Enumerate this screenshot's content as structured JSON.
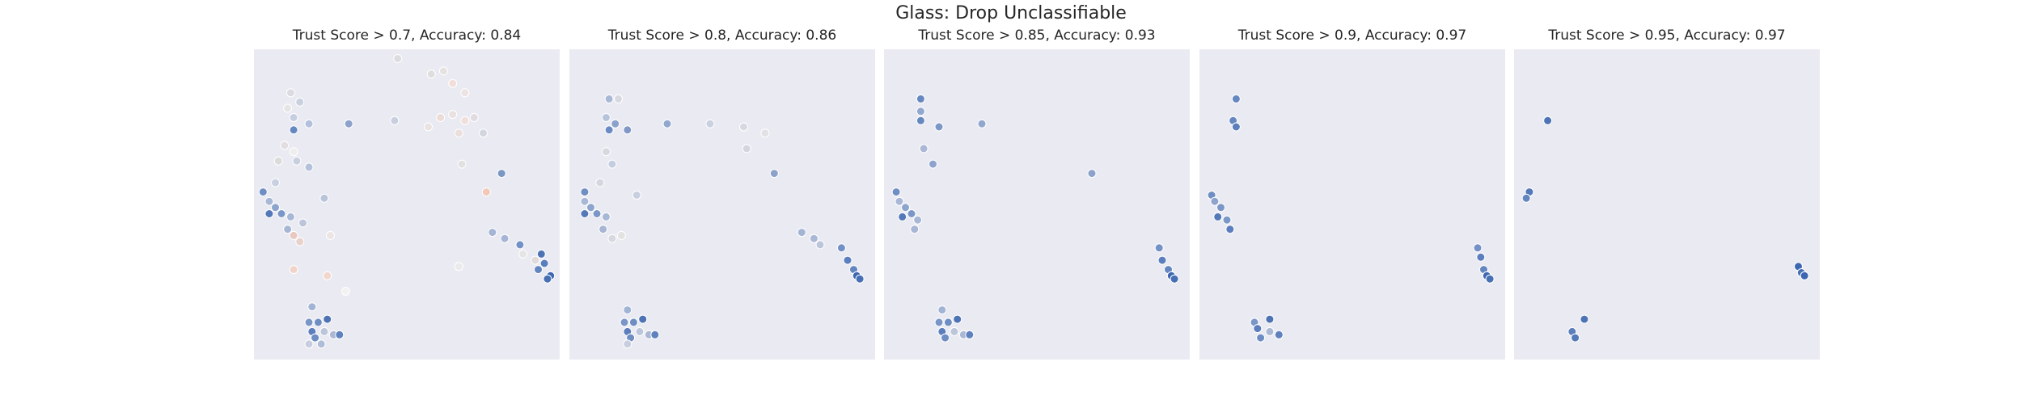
{
  "figure": {
    "title": "Glass: Drop Unclassifiable"
  },
  "chart_data": [
    {
      "type": "scatter",
      "title": "Trust Score > 0.7, Accuracy: 0.84",
      "points": [
        [
          0.47,
          0.03,
          "#dddcdf"
        ],
        [
          0.58,
          0.08,
          "#dedede"
        ],
        [
          0.62,
          0.07,
          "#e6e2e2"
        ],
        [
          0.65,
          0.11,
          "#f3dfda"
        ],
        [
          0.69,
          0.14,
          "#ede3e3"
        ],
        [
          0.12,
          0.14,
          "#dddbe1"
        ],
        [
          0.15,
          0.17,
          "#c9d0e0"
        ],
        [
          0.11,
          0.19,
          "#e5e5e5"
        ],
        [
          0.13,
          0.22,
          "#c5cde0"
        ],
        [
          0.18,
          0.24,
          "#b1c0dc"
        ],
        [
          0.13,
          0.26,
          "#6688c0"
        ],
        [
          0.31,
          0.24,
          "#8ca2cb"
        ],
        [
          0.46,
          0.23,
          "#c8cfdf"
        ],
        [
          0.61,
          0.22,
          "#ecdcd8"
        ],
        [
          0.65,
          0.21,
          "#e8e1e0"
        ],
        [
          0.69,
          0.23,
          "#f1dfd9"
        ],
        [
          0.72,
          0.22,
          "#e0dbe1"
        ],
        [
          0.75,
          0.27,
          "#d4d6df"
        ],
        [
          0.67,
          0.27,
          "#eadfdd"
        ],
        [
          0.57,
          0.25,
          "#eae3e2"
        ],
        [
          0.1,
          0.31,
          "#e1dde1"
        ],
        [
          0.13,
          0.33,
          "#eeeeee"
        ],
        [
          0.08,
          0.36,
          "#dbdbdb"
        ],
        [
          0.14,
          0.36,
          "#c8d0e0"
        ],
        [
          0.18,
          0.38,
          "#b4c1da"
        ],
        [
          0.68,
          0.37,
          "#e1e1e1"
        ],
        [
          0.81,
          0.4,
          "#7a97c4"
        ],
        [
          0.07,
          0.43,
          "#c9d0e0"
        ],
        [
          0.03,
          0.46,
          "#6f8fc4"
        ],
        [
          0.05,
          0.49,
          "#a9b8d6"
        ],
        [
          0.07,
          0.51,
          "#8da4cd"
        ],
        [
          0.09,
          0.53,
          "#7b97c7"
        ],
        [
          0.12,
          0.54,
          "#a7b8d6"
        ],
        [
          0.16,
          0.56,
          "#bcc5d9"
        ],
        [
          0.23,
          0.48,
          "#b9c4da"
        ],
        [
          0.05,
          0.53,
          "#5479b9"
        ],
        [
          0.11,
          0.58,
          "#a6b6d4"
        ],
        [
          0.13,
          0.6,
          "#e8c9c1"
        ],
        [
          0.15,
          0.62,
          "#ead2cc"
        ],
        [
          0.25,
          0.6,
          "#ebe5e5"
        ],
        [
          0.76,
          0.46,
          "#f3c8b8"
        ],
        [
          0.78,
          0.59,
          "#a3b4d4"
        ],
        [
          0.82,
          0.61,
          "#a6b5d5"
        ],
        [
          0.87,
          0.63,
          "#7391c6"
        ],
        [
          0.88,
          0.66,
          "#e5e5e5"
        ],
        [
          0.94,
          0.66,
          "#4d73b5"
        ],
        [
          0.92,
          0.68,
          "#e0dada"
        ],
        [
          0.95,
          0.69,
          "#5a7ebe"
        ],
        [
          0.93,
          0.71,
          "#6386c1"
        ],
        [
          0.97,
          0.73,
          "#3d67b0"
        ],
        [
          0.96,
          0.74,
          "#4770b4"
        ],
        [
          0.67,
          0.7,
          "#eaeaea"
        ],
        [
          0.13,
          0.71,
          "#f1d4c9"
        ],
        [
          0.24,
          0.73,
          "#f1d7cc"
        ],
        [
          0.3,
          0.78,
          "#f2f2f2"
        ],
        [
          0.19,
          0.83,
          "#a2b4d5"
        ],
        [
          0.18,
          0.88,
          "#7a96c6"
        ],
        [
          0.21,
          0.88,
          "#6d8dc3"
        ],
        [
          0.24,
          0.87,
          "#4d73b5"
        ],
        [
          0.19,
          0.91,
          "#5c7ebd"
        ],
        [
          0.2,
          0.93,
          "#6d8dc3"
        ],
        [
          0.23,
          0.91,
          "#bcc6da"
        ],
        [
          0.26,
          0.92,
          "#aab8d5"
        ],
        [
          0.28,
          0.92,
          "#5f82bf"
        ],
        [
          0.18,
          0.95,
          "#c8cee0"
        ],
        [
          0.22,
          0.95,
          "#aebdd8"
        ]
      ]
    },
    {
      "type": "scatter",
      "title": "Trust Score > 0.8, Accuracy: 0.86",
      "points": [
        [
          0.13,
          0.16,
          "#a9b8d6"
        ],
        [
          0.16,
          0.16,
          "#d8d9e0"
        ],
        [
          0.12,
          0.22,
          "#b7c3da"
        ],
        [
          0.15,
          0.24,
          "#8ba2cb"
        ],
        [
          0.13,
          0.26,
          "#6a8bc3"
        ],
        [
          0.19,
          0.26,
          "#8198c7"
        ],
        [
          0.32,
          0.24,
          "#92a7cd"
        ],
        [
          0.46,
          0.24,
          "#c9d0df"
        ],
        [
          0.57,
          0.25,
          "#d8d9e0"
        ],
        [
          0.64,
          0.27,
          "#e3e1e4"
        ],
        [
          0.58,
          0.32,
          "#d4d6df"
        ],
        [
          0.12,
          0.33,
          "#d7d8df"
        ],
        [
          0.14,
          0.37,
          "#c5cde0"
        ],
        [
          0.67,
          0.4,
          "#8ca2cb"
        ],
        [
          0.1,
          0.43,
          "#d5d7df"
        ],
        [
          0.22,
          0.47,
          "#c8cfdf"
        ],
        [
          0.05,
          0.46,
          "#6f8fc4"
        ],
        [
          0.05,
          0.49,
          "#a9b8d6"
        ],
        [
          0.07,
          0.51,
          "#8da4cd"
        ],
        [
          0.09,
          0.53,
          "#7b97c7"
        ],
        [
          0.12,
          0.54,
          "#a7b8d6"
        ],
        [
          0.05,
          0.53,
          "#5479b9"
        ],
        [
          0.11,
          0.58,
          "#a6b6d4"
        ],
        [
          0.14,
          0.61,
          "#d7d8e0"
        ],
        [
          0.17,
          0.6,
          "#e2e2e2"
        ],
        [
          0.76,
          0.59,
          "#a3b4d4"
        ],
        [
          0.8,
          0.61,
          "#aab8d5"
        ],
        [
          0.82,
          0.63,
          "#bcc6da"
        ],
        [
          0.89,
          0.64,
          "#7391c6"
        ],
        [
          0.91,
          0.68,
          "#5a7ebe"
        ],
        [
          0.93,
          0.71,
          "#6386c1"
        ],
        [
          0.94,
          0.73,
          "#3d67b0"
        ],
        [
          0.95,
          0.74,
          "#4770b4"
        ],
        [
          0.19,
          0.84,
          "#a2b4d5"
        ],
        [
          0.18,
          0.88,
          "#7a96c6"
        ],
        [
          0.21,
          0.88,
          "#6d8dc3"
        ],
        [
          0.24,
          0.87,
          "#4d73b5"
        ],
        [
          0.19,
          0.91,
          "#5c7ebd"
        ],
        [
          0.2,
          0.93,
          "#6d8dc3"
        ],
        [
          0.23,
          0.91,
          "#bcc6da"
        ],
        [
          0.26,
          0.92,
          "#aab8d5"
        ],
        [
          0.28,
          0.92,
          "#5f82bf"
        ],
        [
          0.19,
          0.95,
          "#c8cee0"
        ]
      ]
    },
    {
      "type": "scatter",
      "title": "Trust Score > 0.85, Accuracy: 0.93",
      "points": [
        [
          0.12,
          0.16,
          "#6688c0"
        ],
        [
          0.12,
          0.2,
          "#92a7cd"
        ],
        [
          0.12,
          0.23,
          "#6688c0"
        ],
        [
          0.18,
          0.25,
          "#7b97c7"
        ],
        [
          0.32,
          0.24,
          "#92a7cd"
        ],
        [
          0.13,
          0.32,
          "#aab8d5"
        ],
        [
          0.16,
          0.37,
          "#8da4cd"
        ],
        [
          0.68,
          0.4,
          "#8ca2cb"
        ],
        [
          0.04,
          0.46,
          "#6f8fc4"
        ],
        [
          0.05,
          0.49,
          "#a9b8d6"
        ],
        [
          0.07,
          0.51,
          "#8da4cd"
        ],
        [
          0.09,
          0.53,
          "#7b97c7"
        ],
        [
          0.11,
          0.55,
          "#a7b8d6"
        ],
        [
          0.06,
          0.54,
          "#5479b9"
        ],
        [
          0.1,
          0.58,
          "#a6b6d4"
        ],
        [
          0.9,
          0.64,
          "#7391c6"
        ],
        [
          0.91,
          0.68,
          "#5a7ebe"
        ],
        [
          0.93,
          0.71,
          "#6386c1"
        ],
        [
          0.94,
          0.73,
          "#3d67b0"
        ],
        [
          0.95,
          0.74,
          "#4770b4"
        ],
        [
          0.19,
          0.84,
          "#a2b4d5"
        ],
        [
          0.18,
          0.88,
          "#7a96c6"
        ],
        [
          0.21,
          0.88,
          "#6d8dc3"
        ],
        [
          0.24,
          0.87,
          "#4d73b5"
        ],
        [
          0.19,
          0.91,
          "#5c7ebd"
        ],
        [
          0.2,
          0.93,
          "#6d8dc3"
        ],
        [
          0.23,
          0.91,
          "#bcc6da"
        ],
        [
          0.26,
          0.92,
          "#aab8d5"
        ],
        [
          0.28,
          0.92,
          "#5f82bf"
        ]
      ]
    },
    {
      "type": "scatter",
      "title": "Trust Score > 0.9, Accuracy: 0.97",
      "points": [
        [
          0.12,
          0.16,
          "#6688c0"
        ],
        [
          0.11,
          0.23,
          "#6688c0"
        ],
        [
          0.12,
          0.25,
          "#5c7ebd"
        ],
        [
          0.04,
          0.47,
          "#6f8fc4"
        ],
        [
          0.05,
          0.49,
          "#8da4cd"
        ],
        [
          0.07,
          0.51,
          "#7b97c7"
        ],
        [
          0.06,
          0.54,
          "#5479b9"
        ],
        [
          0.09,
          0.55,
          "#7b97c7"
        ],
        [
          0.1,
          0.58,
          "#5a7ebe"
        ],
        [
          0.91,
          0.64,
          "#7391c6"
        ],
        [
          0.92,
          0.67,
          "#5a7ebe"
        ],
        [
          0.93,
          0.71,
          "#6386c1"
        ],
        [
          0.94,
          0.73,
          "#3d67b0"
        ],
        [
          0.95,
          0.74,
          "#4770b4"
        ],
        [
          0.18,
          0.88,
          "#7a96c6"
        ],
        [
          0.23,
          0.87,
          "#4d73b5"
        ],
        [
          0.19,
          0.9,
          "#5c7ebd"
        ],
        [
          0.2,
          0.93,
          "#6d8dc3"
        ],
        [
          0.23,
          0.91,
          "#aab8d5"
        ],
        [
          0.26,
          0.92,
          "#5f82bf"
        ]
      ]
    },
    {
      "type": "scatter",
      "title": "Trust Score > 0.95, Accuracy: 0.97",
      "points": [
        [
          0.11,
          0.23,
          "#4d73b5"
        ],
        [
          0.05,
          0.46,
          "#5479b9"
        ],
        [
          0.04,
          0.48,
          "#6386c1"
        ],
        [
          0.93,
          0.7,
          "#3d67b0"
        ],
        [
          0.94,
          0.72,
          "#4770b4"
        ],
        [
          0.95,
          0.73,
          "#3d67b0"
        ],
        [
          0.23,
          0.87,
          "#4d73b5"
        ],
        [
          0.19,
          0.91,
          "#5c7ebd"
        ],
        [
          0.2,
          0.93,
          "#5479b9"
        ]
      ]
    }
  ]
}
